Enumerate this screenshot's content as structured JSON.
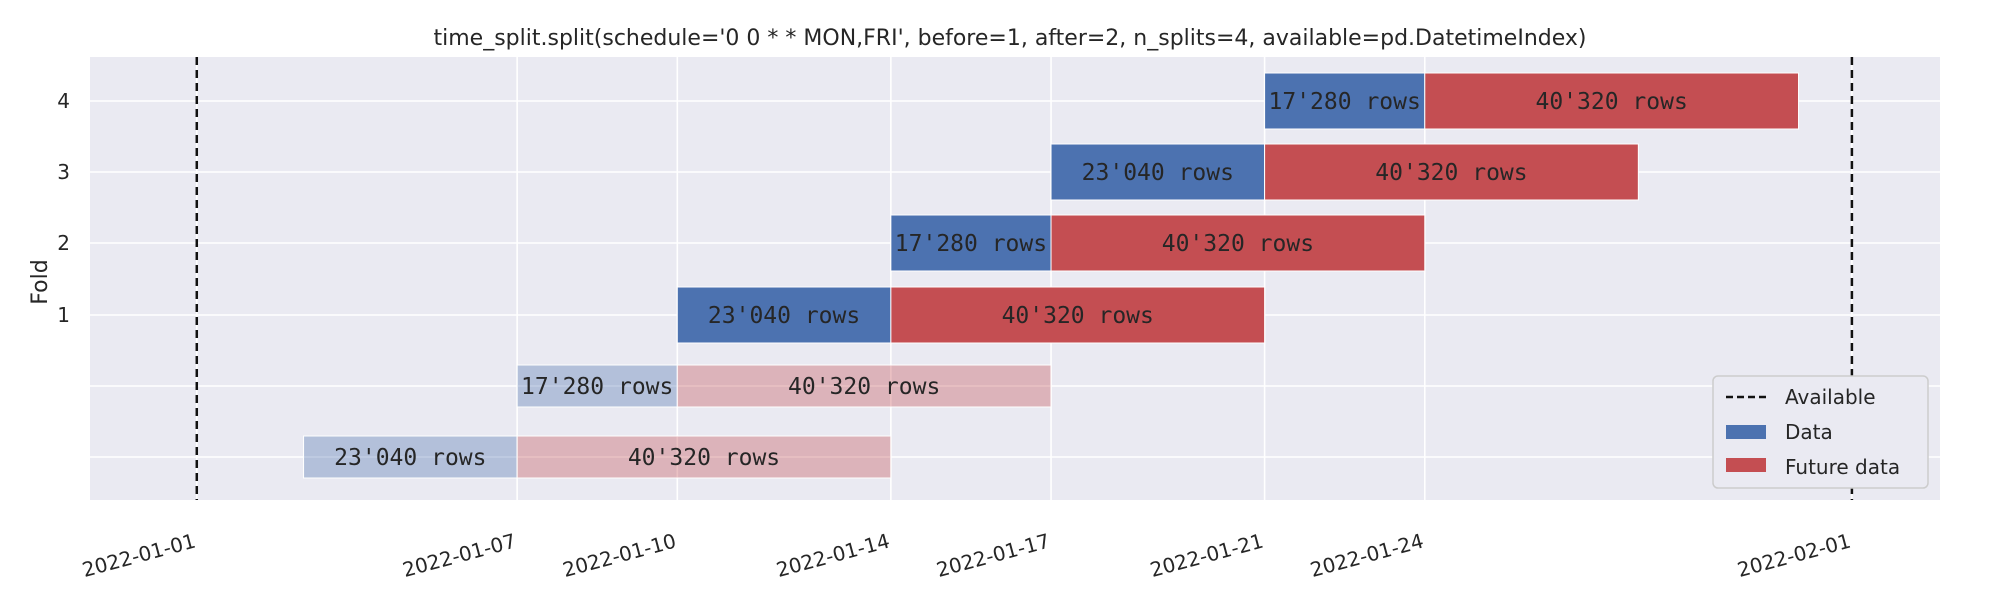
{
  "chart_data": {
    "type": "gantt",
    "title": "time_split.split(schedule='0 0 * * MON,FRI', before=1, after=2, n_splits=4, available=pd.DatetimeIndex)",
    "ylabel": "Fold",
    "xlabel": "",
    "x_ticks": [
      "2022-01-01",
      "2022-01-07",
      "2022-01-10",
      "2022-01-14",
      "2022-01-17",
      "2022-01-21",
      "2022-01-24",
      "2022-02-01"
    ],
    "y_ticks": [
      "1",
      "2",
      "3",
      "4"
    ],
    "xlim": [
      "2021-12-30",
      "2022-02-01"
    ],
    "available": [
      "2022-01-01",
      "2022-02-01"
    ],
    "colors": {
      "data": "#4c72b0",
      "future_data": "#c44e52",
      "background": "#eaeaf2",
      "grid": "#ffffff",
      "available": "#111111"
    },
    "folds": [
      {
        "fold": "",
        "skipped": true,
        "data": {
          "start": "2022-01-03",
          "end": "2022-01-07",
          "label": "23'040 rows"
        },
        "future": {
          "start": "2022-01-07",
          "end": "2022-01-14",
          "label": "40'320 rows"
        }
      },
      {
        "fold": "",
        "skipped": true,
        "data": {
          "start": "2022-01-07",
          "end": "2022-01-10",
          "label": "17'280 rows"
        },
        "future": {
          "start": "2022-01-10",
          "end": "2022-01-17",
          "label": "40'320 rows"
        }
      },
      {
        "fold": "1",
        "skipped": false,
        "data": {
          "start": "2022-01-10",
          "end": "2022-01-14",
          "label": "23'040 rows"
        },
        "future": {
          "start": "2022-01-14",
          "end": "2022-01-21",
          "label": "40'320 rows"
        }
      },
      {
        "fold": "2",
        "skipped": false,
        "data": {
          "start": "2022-01-14",
          "end": "2022-01-17",
          "label": "17'280 rows"
        },
        "future": {
          "start": "2022-01-17",
          "end": "2022-01-24",
          "label": "40'320 rows"
        }
      },
      {
        "fold": "3",
        "skipped": false,
        "data": {
          "start": "2022-01-17",
          "end": "2022-01-21",
          "label": "23'040 rows"
        },
        "future": {
          "start": "2022-01-21",
          "end": "2022-01-28",
          "label": "40'320 rows"
        }
      },
      {
        "fold": "4",
        "skipped": false,
        "data": {
          "start": "2022-01-21",
          "end": "2022-01-24",
          "label": "17'280 rows"
        },
        "future": {
          "start": "2022-01-24",
          "end": "2022-01-31",
          "label": "40'320 rows"
        }
      }
    ],
    "legend": {
      "position": "lower right",
      "entries": [
        "Available",
        "Data",
        "Future data"
      ]
    },
    "grid": true
  }
}
